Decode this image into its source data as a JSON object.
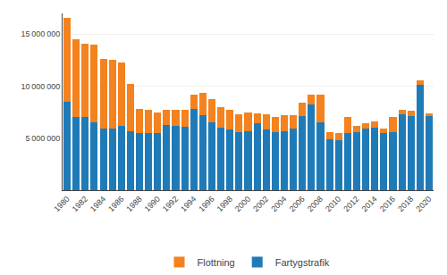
{
  "chart_data": {
    "type": "bar",
    "stacked": true,
    "categories": [
      "1980",
      null,
      "1982",
      null,
      "1984",
      null,
      "1986",
      null,
      "1988",
      null,
      "1990",
      null,
      "1992",
      null,
      "1994",
      null,
      "1996",
      null,
      "1998",
      null,
      "2000",
      null,
      "2002",
      null,
      "2004",
      null,
      "2006",
      null,
      "2008",
      null,
      "2010",
      null,
      "2012",
      null,
      "2014",
      null,
      "2016",
      null,
      "2018",
      null,
      "2020"
    ],
    "series": [
      {
        "name": "Fartygstrafik",
        "color": "#1f7bb8",
        "values": [
          8500000,
          7000000,
          7000000,
          6500000,
          5900000,
          5900000,
          6200000,
          5700000,
          5500000,
          5500000,
          5500000,
          6300000,
          6200000,
          6100000,
          7800000,
          7200000,
          6500000,
          6000000,
          5800000,
          5600000,
          5700000,
          6400000,
          5800000,
          5600000,
          5700000,
          5900000,
          7100000,
          8200000,
          6500000,
          4900000,
          4800000,
          5500000,
          5600000,
          5900000,
          6000000,
          5500000,
          5600000,
          7300000,
          7100000,
          10100000,
          7100000
        ]
      },
      {
        "name": "Flottning",
        "color": "#f4821e",
        "values": [
          8100000,
          7500000,
          7100000,
          7500000,
          6700000,
          6600000,
          6100000,
          4500000,
          2300000,
          2200000,
          2000000,
          1400000,
          1500000,
          1600000,
          1400000,
          2200000,
          2300000,
          2000000,
          1900000,
          1700000,
          1800000,
          1000000,
          1500000,
          1400000,
          1500000,
          1300000,
          1300000,
          1000000,
          2700000,
          700000,
          700000,
          1500000,
          600000,
          500000,
          600000,
          400000,
          1400000,
          400000,
          500000,
          500000,
          300000
        ]
      }
    ],
    "ylim": [
      0,
      17000000
    ],
    "yticks": [
      {
        "value": 5000000,
        "label": "5 000 000"
      },
      {
        "value": 10000000,
        "label": "10 000 000"
      },
      {
        "value": 15000000,
        "label": "15 000 000"
      }
    ],
    "grid": true,
    "legend": "bottom"
  }
}
